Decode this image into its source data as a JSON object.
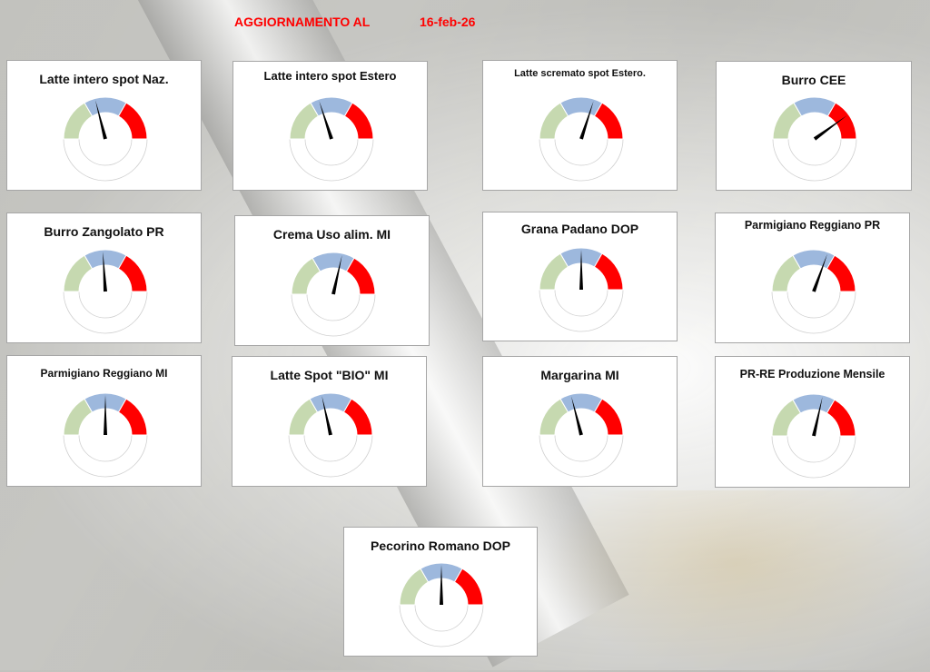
{
  "header": {
    "label": "AGGIORNAMENTO AL",
    "date": "16-feb-26"
  },
  "colors": {
    "green_zone": "#c6d9b0",
    "blue_zone": "#9db8dd",
    "red_zone": "#ff0000",
    "needle": "#000000",
    "header_text": "#ff0000"
  },
  "chart_data": [
    {
      "type": "gauge",
      "title": "Latte intero spot Naz.",
      "needle_fraction": 0.42
    },
    {
      "type": "gauge",
      "title": "Latte intero spot Estero",
      "needle_fraction": 0.4
    },
    {
      "type": "gauge",
      "title": "Latte scremato spot Estero.",
      "needle_fraction": 0.6
    },
    {
      "type": "gauge",
      "title": "Burro CEE",
      "needle_fraction": 0.8
    },
    {
      "type": "gauge",
      "title": "Burro Zangolato PR",
      "needle_fraction": 0.48
    },
    {
      "type": "gauge",
      "title": "Crema Uso alim. MI",
      "needle_fraction": 0.57
    },
    {
      "type": "gauge",
      "title": "Grana Padano DOP",
      "needle_fraction": 0.5
    },
    {
      "type": "gauge",
      "title": "Parmigiano Reggiano PR",
      "needle_fraction": 0.61
    },
    {
      "type": "gauge",
      "title": "Parmigiano Reggiano MI",
      "needle_fraction": 0.5
    },
    {
      "type": "gauge",
      "title": "Latte Spot \"BIO\" MI",
      "needle_fraction": 0.43
    },
    {
      "type": "gauge",
      "title": "Margarina MI",
      "needle_fraction": 0.42
    },
    {
      "type": "gauge",
      "title": "PR-RE Produzione Mensile",
      "needle_fraction": 0.57
    },
    {
      "type": "gauge",
      "title": "Pecorino Romano DOP",
      "needle_fraction": 0.5
    }
  ]
}
